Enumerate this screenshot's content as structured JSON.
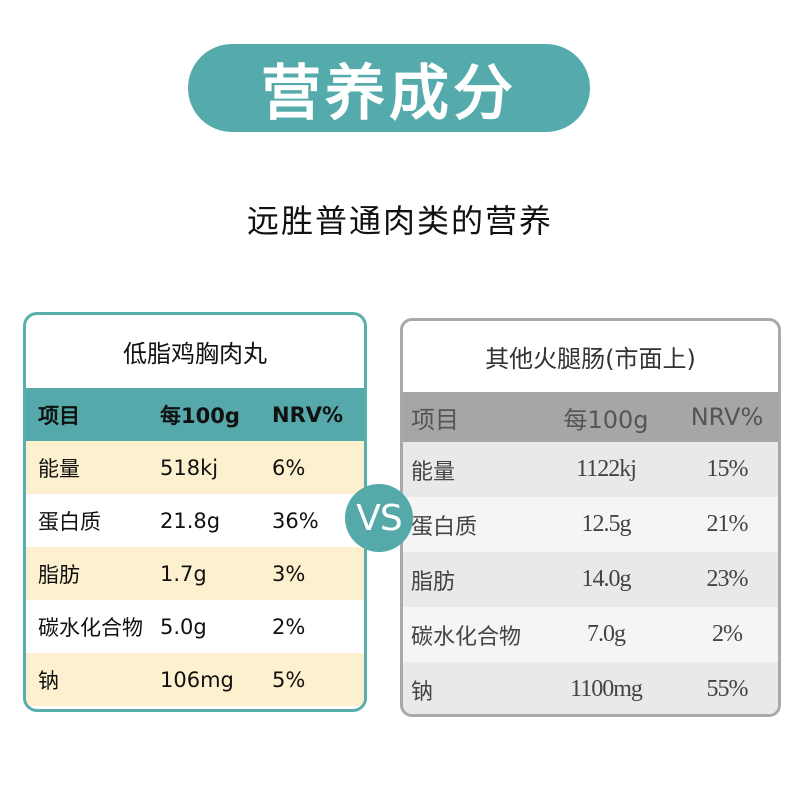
{
  "header": {
    "title": "营养成分",
    "subtitle": "远胜普通肉类的营养"
  },
  "colors": {
    "accent_teal": "#55abab",
    "cream_row": "#fdf0ce",
    "gray_header": "#a6a6a6"
  },
  "vs_badge": "VS",
  "left_table": {
    "title": "低脂鸡胸肉丸",
    "columns": [
      "项目",
      "每100g",
      "NRV%"
    ],
    "rows": [
      [
        "能量",
        "518kj",
        "6%"
      ],
      [
        "蛋白质",
        "21.8g",
        "36%"
      ],
      [
        "脂肪",
        "1.7g",
        "3%"
      ],
      [
        "碳水化合物",
        "5.0g",
        "2%"
      ],
      [
        "钠",
        "106mg",
        "5%"
      ]
    ]
  },
  "right_table": {
    "title": "其他火腿肠(市面上)",
    "columns": [
      "项目",
      "每100g",
      "NRV%"
    ],
    "rows": [
      [
        "能量",
        "1122kj",
        "15%"
      ],
      [
        "蛋白质",
        "12.5g",
        "21%"
      ],
      [
        "脂肪",
        "14.0g",
        "23%"
      ],
      [
        "碳水化合物",
        "7.0g",
        "2%"
      ],
      [
        "钠",
        "1100mg",
        "55%"
      ]
    ]
  }
}
